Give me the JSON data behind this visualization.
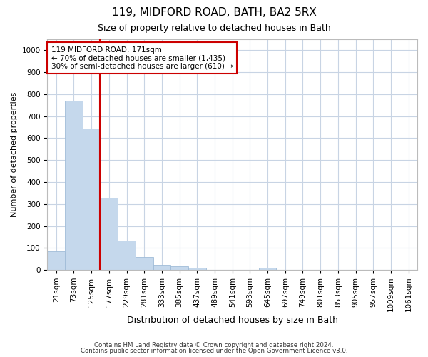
{
  "title": "119, MIDFORD ROAD, BATH, BA2 5RX",
  "subtitle": "Size of property relative to detached houses in Bath",
  "xlabel": "Distribution of detached houses by size in Bath",
  "ylabel": "Number of detached properties",
  "bar_labels": [
    "21sqm",
    "73sqm",
    "125sqm",
    "177sqm",
    "229sqm",
    "281sqm",
    "333sqm",
    "385sqm",
    "437sqm",
    "489sqm",
    "541sqm",
    "593sqm",
    "645sqm",
    "697sqm",
    "749sqm",
    "801sqm",
    "853sqm",
    "905sqm",
    "957sqm",
    "1009sqm",
    "1061sqm"
  ],
  "bar_values": [
    85,
    770,
    645,
    330,
    135,
    58,
    22,
    18,
    10,
    0,
    0,
    0,
    10,
    0,
    0,
    0,
    0,
    0,
    0,
    0,
    0
  ],
  "bar_color": "#c5d8ec",
  "bar_edge_color": "#a0bcd8",
  "vline_x": 3,
  "vline_color": "#cc0000",
  "annotation_text": "119 MIDFORD ROAD: 171sqm\n← 70% of detached houses are smaller (1,435)\n30% of semi-detached houses are larger (610) →",
  "annotation_box_color": "#ffffff",
  "annotation_border_color": "#cc0000",
  "ylim": [
    0,
    1050
  ],
  "yticks": [
    0,
    100,
    200,
    300,
    400,
    500,
    600,
    700,
    800,
    900,
    1000
  ],
  "grid_color": "#c8d4e4",
  "plot_bg_color": "#ffffff",
  "fig_bg_color": "#ffffff",
  "footer_line1": "Contains HM Land Registry data © Crown copyright and database right 2024.",
  "footer_line2": "Contains public sector information licensed under the Open Government Licence v3.0.",
  "title_fontsize": 11,
  "subtitle_fontsize": 9,
  "ylabel_fontsize": 8,
  "xlabel_fontsize": 9,
  "tick_fontsize": 7.5,
  "annotation_fontsize": 7.5
}
